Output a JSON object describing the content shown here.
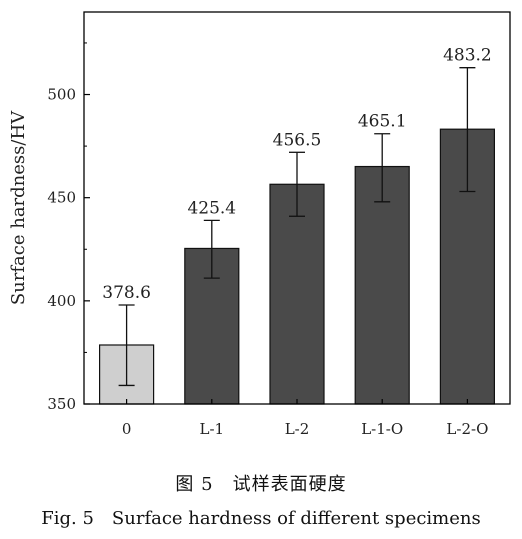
{
  "chart_data": {
    "type": "bar",
    "categories": [
      "0",
      "L-1",
      "L-2",
      "L-1-O",
      "L-2-O"
    ],
    "values": [
      378.6,
      425.4,
      456.5,
      465.1,
      483.2
    ],
    "value_labels": [
      "378.6",
      "425.4",
      "456.5",
      "465.1",
      "483.2"
    ],
    "error_bars": [
      [
        359,
        398
      ],
      [
        411,
        439
      ],
      [
        441,
        472
      ],
      [
        448,
        481
      ],
      [
        453,
        513
      ]
    ],
    "bar_colors": [
      "#cfcfcf",
      "#4a4a4a",
      "#4a4a4a",
      "#4a4a4a",
      "#4a4a4a"
    ],
    "xlabel": "",
    "ylabel": "Surface hardness/HV",
    "ylim": [
      350,
      540
    ],
    "yticks": [
      350,
      400,
      450,
      500
    ],
    "ytick_labels": [
      "350",
      "400",
      "450",
      "500"
    ],
    "grid": false,
    "legend": "none"
  },
  "caption": {
    "cn": "图 5　试样表面硬度",
    "en": "Fig. 5　Surface hardness of different specimens"
  }
}
